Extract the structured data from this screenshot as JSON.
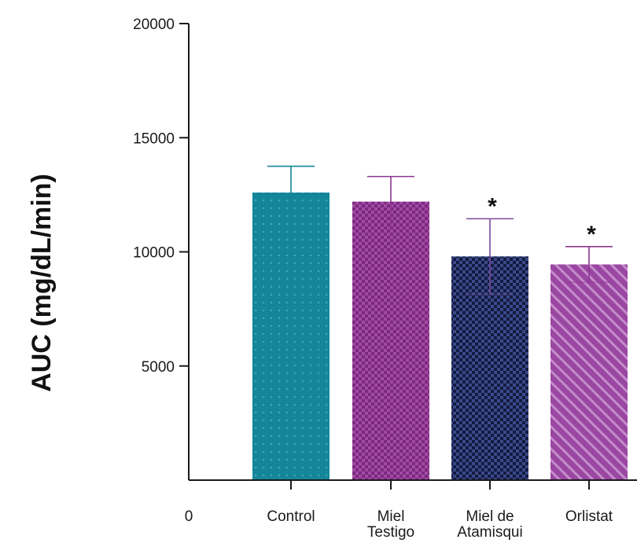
{
  "chart_data": {
    "type": "bar",
    "title": "",
    "ylabel": "AUC (mg/dL/min)",
    "xlabel": "",
    "ylim": [
      0,
      20000
    ],
    "yticks": [
      5000,
      10000,
      15000,
      20000
    ],
    "origin_label": "0",
    "categories": [
      [
        "Control"
      ],
      [
        "Miel",
        "Testigo"
      ],
      [
        "Miel de",
        "Atamisqui"
      ],
      [
        "Orlistat"
      ]
    ],
    "values": [
      12600,
      12200,
      9800,
      9450
    ],
    "errors": [
      1150,
      1100,
      1650,
      780
    ],
    "annotations": [
      "",
      "",
      "*",
      "*"
    ],
    "colors": [
      "#14869a",
      "#8e3590",
      "#26336b",
      "#9a47a2"
    ],
    "error_colors": [
      "#14869a",
      "#8e3590",
      "#7a4a9c",
      "#8e3590"
    ],
    "patterns": [
      "dots",
      "checker",
      "checker",
      "diagonal"
    ],
    "grid": false,
    "legend": "none"
  }
}
